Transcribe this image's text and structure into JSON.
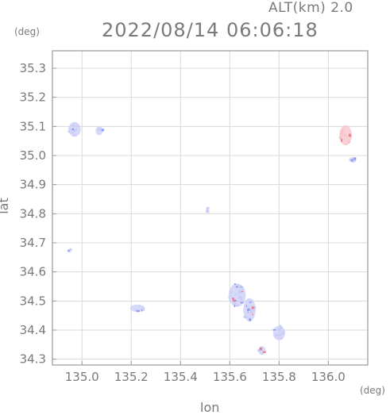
{
  "header": {
    "altitude": "ALT(km) 2.0",
    "datetime": "2022/08/14 06:06:18"
  },
  "axes": {
    "x_label": "lon",
    "y_label": "lat",
    "x_unit": "(deg)",
    "y_unit": "(deg)",
    "x_ticks": [
      "135.0",
      "135.2",
      "135.4",
      "135.6",
      "135.8",
      "136.0"
    ],
    "y_ticks": [
      "35.3",
      "35.2",
      "35.1",
      "35.0",
      "34.9",
      "34.8",
      "34.7",
      "34.6",
      "34.5",
      "34.4",
      "34.3"
    ],
    "x_range": [
      134.88,
      136.16
    ],
    "y_range": [
      34.28,
      35.36
    ]
  },
  "colors": {
    "grid": "#d9d9d9",
    "frame": "#9a9a9a",
    "approaching": "#8f9df0",
    "receding": "#f07d86",
    "light_echo": "#c9ccf5"
  },
  "echo_clusters": [
    {
      "name": "northwest-echo",
      "lon": 134.97,
      "lat": 35.09,
      "lon_span": 0.05,
      "lat_span": 0.05,
      "type": "approaching"
    },
    {
      "name": "north-echo",
      "lon": 135.07,
      "lat": 35.085,
      "lon_span": 0.03,
      "lat_span": 0.03,
      "type": "approaching"
    },
    {
      "name": "northeast-echo",
      "lon": 136.07,
      "lat": 35.07,
      "lon_span": 0.05,
      "lat_span": 0.07,
      "type": "receding"
    },
    {
      "name": "east-speck",
      "lon": 136.1,
      "lat": 34.985,
      "lon_span": 0.025,
      "lat_span": 0.02,
      "type": "approaching"
    },
    {
      "name": "west-speck",
      "lon": 134.95,
      "lat": 34.675,
      "lon_span": 0.01,
      "lat_span": 0.008,
      "type": "approaching"
    },
    {
      "name": "center-speck",
      "lon": 135.51,
      "lat": 34.815,
      "lon_span": 0.01,
      "lat_span": 0.02,
      "type": "approaching"
    },
    {
      "name": "south-echo",
      "lon": 135.225,
      "lat": 34.475,
      "lon_span": 0.06,
      "lat_span": 0.025,
      "type": "approaching"
    },
    {
      "name": "southeast-cluster-a",
      "lon": 135.63,
      "lat": 34.52,
      "lon_span": 0.07,
      "lat_span": 0.08,
      "type": "mixed"
    },
    {
      "name": "southeast-cluster-b",
      "lon": 135.68,
      "lat": 34.47,
      "lon_span": 0.05,
      "lat_span": 0.08,
      "type": "mixed"
    },
    {
      "name": "southeast-cluster-c",
      "lon": 135.8,
      "lat": 34.39,
      "lon_span": 0.05,
      "lat_span": 0.05,
      "type": "approaching"
    },
    {
      "name": "southeast-cluster-d",
      "lon": 135.73,
      "lat": 34.33,
      "lon_span": 0.03,
      "lat_span": 0.03,
      "type": "mixed"
    }
  ]
}
